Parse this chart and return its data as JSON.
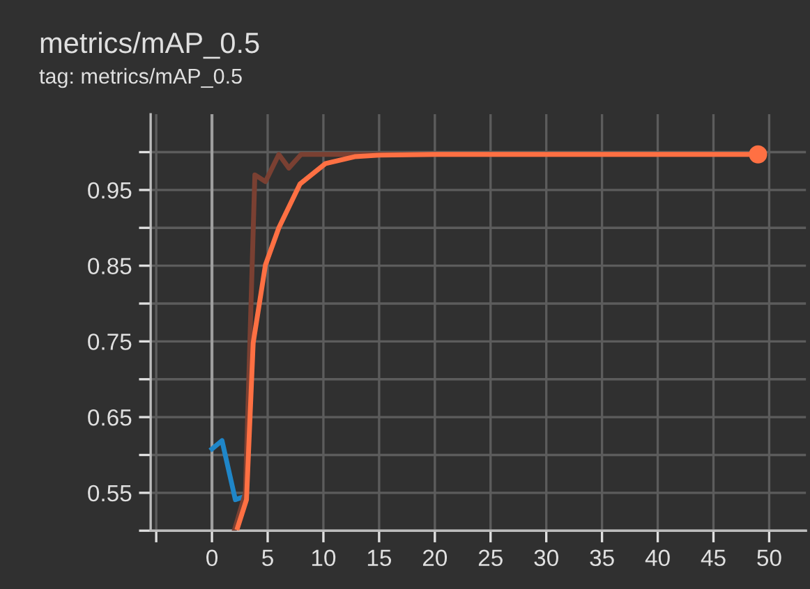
{
  "chart_data": {
    "type": "line",
    "title": "metrics/mAP_0.5",
    "subtitle": "tag: metrics/mAP_0.5",
    "series": [
      {
        "color": "#1f86c8",
        "x": [
          0,
          0.9,
          2.1,
          2.9
        ],
        "values": [
          0.608,
          0.619,
          0.541,
          0.545
        ]
      },
      {
        "color": "#7a4032",
        "x": [
          2,
          3,
          3.85,
          4.8,
          6,
          6.9,
          8,
          10,
          15,
          20,
          30,
          40,
          49
        ],
        "values": [
          0.5,
          0.55,
          0.97,
          0.961,
          0.997,
          0.979,
          0.997,
          0.997,
          0.997,
          0.997,
          0.997,
          0.997,
          0.997
        ]
      },
      {
        "color": "#ff7043",
        "x": [
          2.3,
          3.1,
          3.7,
          4.8,
          6,
          7.9,
          10.2,
          12.8,
          15,
          20,
          30,
          40,
          49
        ],
        "values": [
          0.504,
          0.541,
          0.748,
          0.851,
          0.9,
          0.958,
          0.985,
          0.994,
          0.996,
          0.997,
          0.997,
          0.997,
          0.997
        ]
      },
      {
        "type": "scatter",
        "marker": "circle",
        "color": "#ff7043",
        "x": [
          49
        ],
        "values": [
          0.997
        ]
      }
    ],
    "xlim": [
      -5.5,
      53.3
    ],
    "ylim": [
      0.5,
      1.05
    ],
    "xticks": [
      {
        "value": -5,
        "label": null
      },
      0,
      5,
      10,
      15,
      20,
      25,
      30,
      35,
      40,
      45,
      50
    ],
    "yticks": [
      {
        "value": 0.5,
        "label": null
      },
      0.55,
      {
        "value": 0.6,
        "label": null
      },
      0.65,
      {
        "value": 0.7,
        "label": null
      },
      0.75,
      {
        "value": 0.8,
        "label": null
      },
      0.85,
      {
        "value": 0.9,
        "label": null
      },
      0.95,
      {
        "value": 1.0,
        "label": null
      }
    ],
    "ref_lines": [
      {
        "axis": "x",
        "value": 0,
        "color": "#9e9e9e"
      }
    ],
    "grid": true,
    "legend": false
  }
}
